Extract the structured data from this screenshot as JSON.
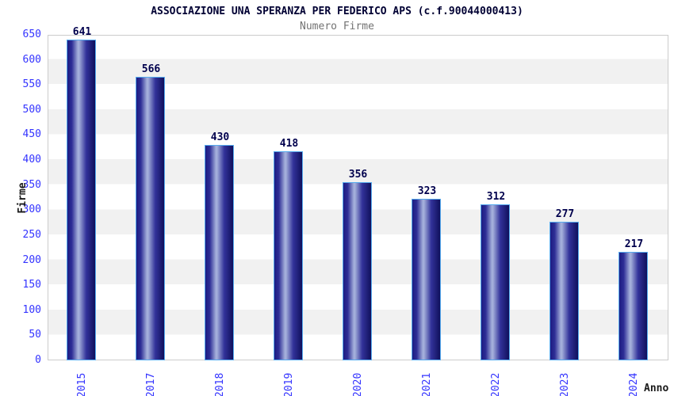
{
  "header": {
    "title": "ASSOCIAZIONE UNA SPERANZA PER FEDERICO APS (c.f.90044000413)",
    "subtitle": "Numero Firme"
  },
  "chart_data": {
    "type": "bar",
    "title": "ASSOCIAZIONE UNA SPERANZA PER FEDERICO APS (c.f.90044000413)",
    "subtitle": "Numero Firme",
    "categories": [
      "2015",
      "2017",
      "2018",
      "2019",
      "2020",
      "2021",
      "2022",
      "2023",
      "2024"
    ],
    "values": [
      641,
      566,
      430,
      418,
      356,
      323,
      312,
      277,
      217
    ],
    "xlabel": "Anno",
    "ylabel": "Firme",
    "ylim": [
      0,
      650
    ],
    "yticks": [
      0,
      50,
      100,
      150,
      200,
      250,
      300,
      350,
      400,
      450,
      500,
      550,
      600,
      650
    ],
    "grid": "alternating-horizontal-bands",
    "legend": "none",
    "colors": {
      "bar_dark": "#1c1c82",
      "bar_highlight": "#a3aeda",
      "bar_border": "#55aaee",
      "tick_label": "#3333ff",
      "value_label": "#00004d",
      "title": "#000033",
      "subtitle": "#737373",
      "axis_title": "#1a1a1a",
      "band_grey": "#f1f1f1",
      "frame": "#cccccc"
    }
  }
}
